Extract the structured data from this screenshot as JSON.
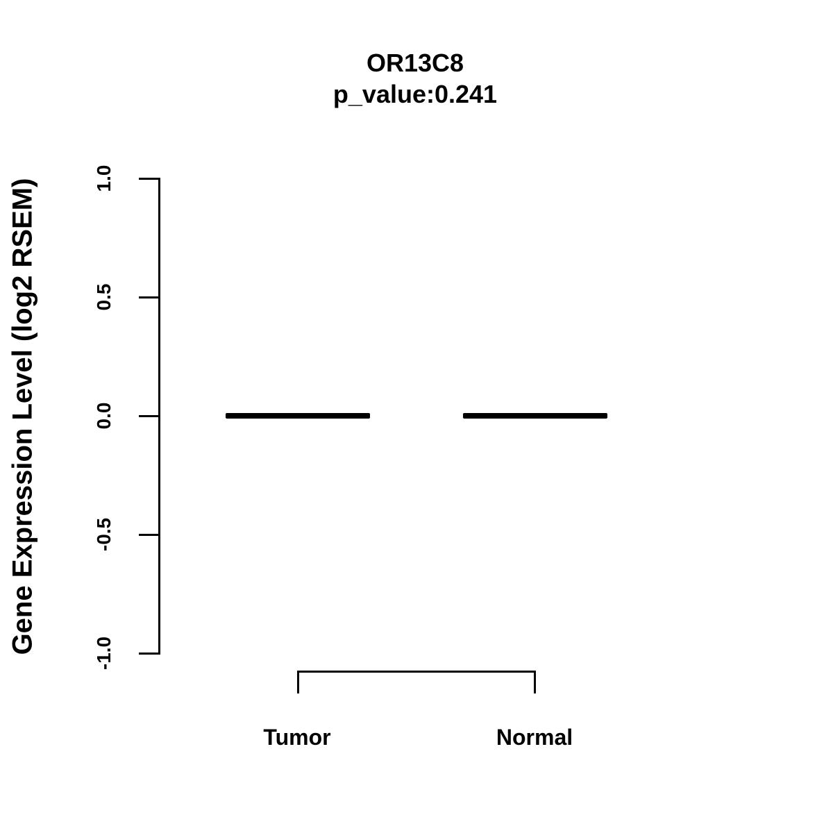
{
  "title": {
    "gene": "OR13C8",
    "p_value_text": "p_value:0.241"
  },
  "y_axis": {
    "label": "Gene Expression Level (log2 RSEM)",
    "tick_labels": [
      "1.0",
      "0.5",
      "0.0",
      "-0.5",
      "-1.0"
    ]
  },
  "x_axis": {
    "categories": [
      "Tumor",
      "Normal"
    ]
  },
  "chart_data": {
    "type": "box",
    "title": "OR13C8",
    "subtitle": "p_value:0.241",
    "categories": [
      "Tumor",
      "Normal"
    ],
    "series": [
      {
        "name": "Tumor",
        "median": 0.0,
        "q1": 0.0,
        "q3": 0.0,
        "min": 0.0,
        "max": 0.0
      },
      {
        "name": "Normal",
        "median": 0.0,
        "q1": 0.0,
        "q3": 0.0,
        "min": 0.0,
        "max": 0.0
      }
    ],
    "ylabel": "Gene Expression Level (log2 RSEM)",
    "xlabel": "",
    "ylim": [
      -1.0,
      1.0
    ],
    "yticks": [
      1.0,
      0.5,
      0.0,
      -0.5,
      -1.0
    ],
    "grid": false,
    "legend": "none",
    "colors": {
      "foreground": "#000000",
      "background": "#ffffff"
    }
  }
}
